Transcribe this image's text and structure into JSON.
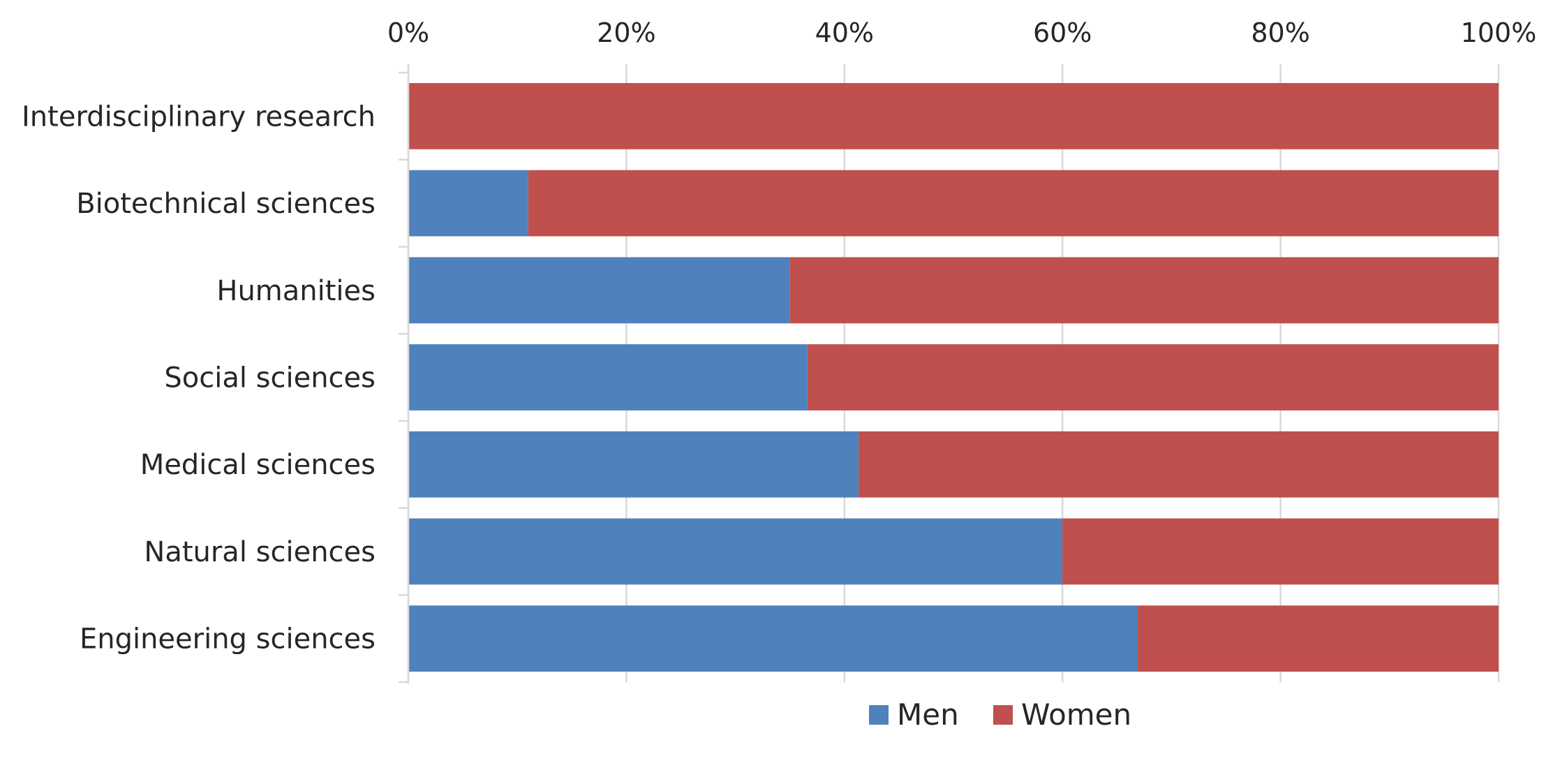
{
  "chart_data": {
    "type": "bar",
    "orientation": "horizontal",
    "stacked": "percent",
    "title": "",
    "xlabel": "",
    "ylabel": "",
    "xlim": [
      0,
      100
    ],
    "x_ticks": [
      "0%",
      "20%",
      "40%",
      "60%",
      "80%",
      "100%"
    ],
    "x_axis_position": "top",
    "grid": true,
    "legend": "bottom",
    "categories": [
      "Interdisciplinary research",
      "Biotechnical sciences",
      "Humanities",
      "Social sciences",
      "Medical sciences",
      "Natural sciences",
      "Engineering sciences"
    ],
    "series": [
      {
        "name": "Men",
        "color": "#4f81bd",
        "values": [
          0,
          11,
          35,
          36.6,
          41.3,
          60,
          66.9
        ]
      },
      {
        "name": "Women",
        "color": "#c0504d",
        "values": [
          100,
          89,
          65,
          63.4,
          58.7,
          40,
          33.1
        ]
      }
    ]
  }
}
